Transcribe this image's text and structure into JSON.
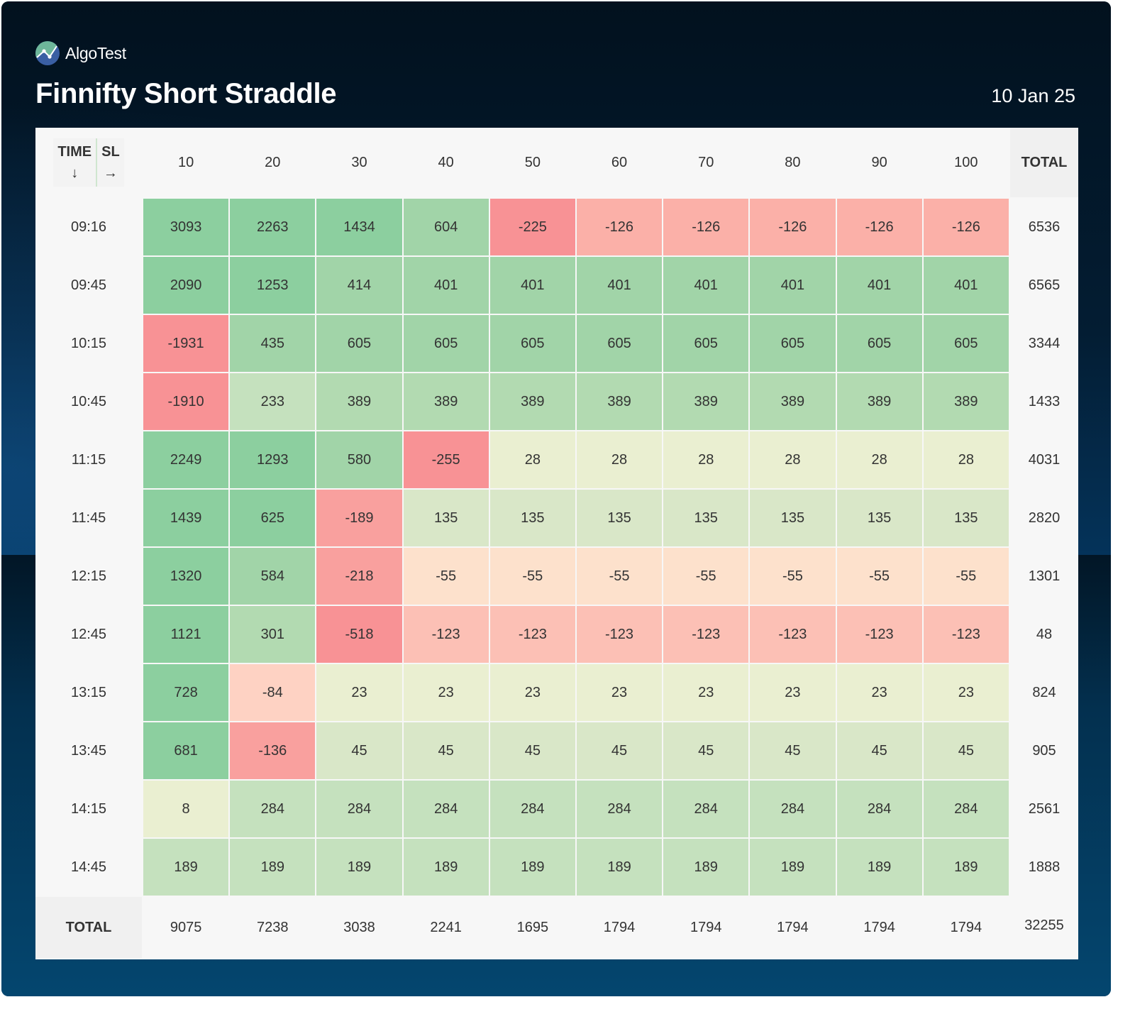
{
  "brand": {
    "name": "AlgoTest",
    "logo_icon": "algotest-logo-icon"
  },
  "header": {
    "title": "Finnifty Short Straddle",
    "date": "10 Jan 25"
  },
  "table": {
    "corner": {
      "row_axis_label": "TIME",
      "row_axis_arrow": "↓",
      "col_axis_label": "SL",
      "col_axis_arrow": "→"
    },
    "total_label": "TOTAL",
    "columns": [
      "10",
      "20",
      "30",
      "40",
      "50",
      "60",
      "70",
      "80",
      "90",
      "100"
    ],
    "rows": [
      {
        "time": "09:16",
        "values": [
          3093,
          2263,
          1434,
          604,
          -225,
          -126,
          -126,
          -126,
          -126,
          -126
        ],
        "total": "6536"
      },
      {
        "time": "09:45",
        "values": [
          2090,
          1253,
          414,
          401,
          401,
          401,
          401,
          401,
          401,
          401
        ],
        "total": "6565"
      },
      {
        "time": "10:15",
        "values": [
          -1931,
          435,
          605,
          605,
          605,
          605,
          605,
          605,
          605,
          605
        ],
        "total": "3344"
      },
      {
        "time": "10:45",
        "values": [
          -1910,
          233,
          389,
          389,
          389,
          389,
          389,
          389,
          389,
          389
        ],
        "total": "1433"
      },
      {
        "time": "11:15",
        "values": [
          2249,
          1293,
          580,
          -255,
          28,
          28,
          28,
          28,
          28,
          28
        ],
        "total": "4031"
      },
      {
        "time": "11:45",
        "values": [
          1439,
          625,
          -189,
          135,
          135,
          135,
          135,
          135,
          135,
          135
        ],
        "total": "2820"
      },
      {
        "time": "12:15",
        "values": [
          1320,
          584,
          -218,
          -55,
          -55,
          -55,
          -55,
          -55,
          -55,
          -55
        ],
        "total": "1301"
      },
      {
        "time": "12:45",
        "values": [
          1121,
          301,
          -518,
          -123,
          -123,
          -123,
          -123,
          -123,
          -123,
          -123
        ],
        "total": "48"
      },
      {
        "time": "13:15",
        "values": [
          728,
          -84,
          23,
          23,
          23,
          23,
          23,
          23,
          23,
          23
        ],
        "total": "824"
      },
      {
        "time": "13:45",
        "values": [
          681,
          -136,
          45,
          45,
          45,
          45,
          45,
          45,
          45,
          45
        ],
        "total": "905"
      },
      {
        "time": "14:15",
        "values": [
          8,
          284,
          284,
          284,
          284,
          284,
          284,
          284,
          284,
          284
        ],
        "total": "2561"
      },
      {
        "time": "14:45",
        "values": [
          189,
          189,
          189,
          189,
          189,
          189,
          189,
          189,
          189,
          189
        ],
        "total": "1888"
      }
    ],
    "column_totals": [
      "9075",
      "7238",
      "3038",
      "2241",
      "1695",
      "1794",
      "1794",
      "1794",
      "1794",
      "1794"
    ],
    "grand_total": "32255"
  },
  "colors": {
    "positive_strong": "#8ccf9f",
    "positive_mid": "#a1d4a8",
    "positive_light": "#c5e1be",
    "near_zero": "#eaefd1",
    "negative_light": "#fde1cc",
    "negative_mid": "#fbb0a8",
    "negative_strong": "#f89295"
  },
  "chart_data": {
    "type": "heatmap",
    "title": "Finnifty Short Straddle",
    "subtitle": "10 Jan 25",
    "xlabel": "SL",
    "ylabel": "TIME",
    "x": [
      "10",
      "20",
      "30",
      "40",
      "50",
      "60",
      "70",
      "80",
      "90",
      "100"
    ],
    "y": [
      "09:16",
      "09:45",
      "10:15",
      "10:45",
      "11:15",
      "11:45",
      "12:15",
      "12:45",
      "13:15",
      "13:45",
      "14:15",
      "14:45"
    ],
    "values": [
      [
        3093,
        2263,
        1434,
        604,
        -225,
        -126,
        -126,
        -126,
        -126,
        -126
      ],
      [
        2090,
        1253,
        414,
        401,
        401,
        401,
        401,
        401,
        401,
        401
      ],
      [
        -1931,
        435,
        605,
        605,
        605,
        605,
        605,
        605,
        605,
        605
      ],
      [
        -1910,
        233,
        389,
        389,
        389,
        389,
        389,
        389,
        389,
        389
      ],
      [
        2249,
        1293,
        580,
        -255,
        28,
        28,
        28,
        28,
        28,
        28
      ],
      [
        1439,
        625,
        -189,
        135,
        135,
        135,
        135,
        135,
        135,
        135
      ],
      [
        1320,
        584,
        -218,
        -55,
        -55,
        -55,
        -55,
        -55,
        -55,
        -55
      ],
      [
        1121,
        301,
        -518,
        -123,
        -123,
        -123,
        -123,
        -123,
        -123,
        -123
      ],
      [
        728,
        -84,
        23,
        23,
        23,
        23,
        23,
        23,
        23,
        23
      ],
      [
        681,
        -136,
        45,
        45,
        45,
        45,
        45,
        45,
        45,
        45
      ],
      [
        8,
        284,
        284,
        284,
        284,
        284,
        284,
        284,
        284,
        284
      ],
      [
        189,
        189,
        189,
        189,
        189,
        189,
        189,
        189,
        189,
        189
      ]
    ],
    "row_totals": [
      6536,
      6565,
      3344,
      1433,
      4031,
      2820,
      1301,
      48,
      824,
      905,
      2561,
      1888
    ],
    "column_totals": [
      9075,
      7238,
      3038,
      2241,
      1695,
      1794,
      1794,
      1794,
      1794,
      1794
    ],
    "grand_total": 32255,
    "colorscale": "red-to-green diverging (negative red, positive green)"
  }
}
